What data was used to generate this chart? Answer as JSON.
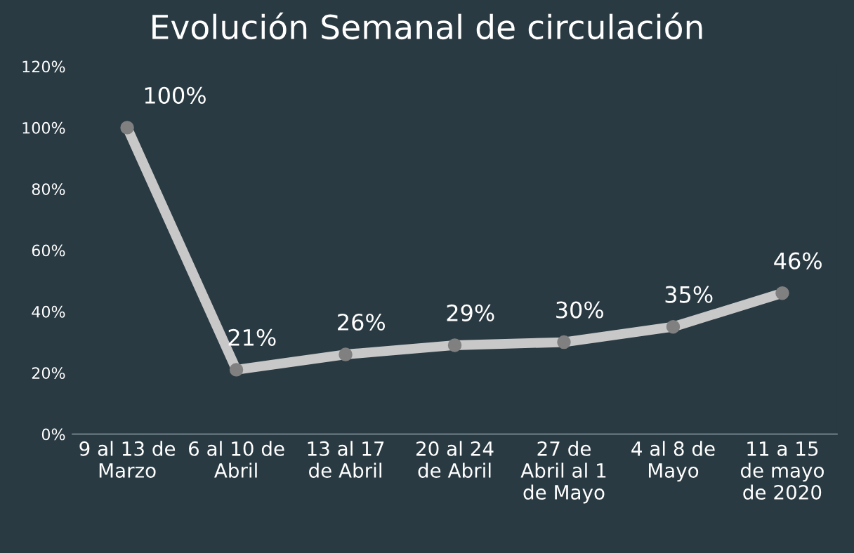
{
  "chart_data": {
    "type": "line",
    "title": "Evolución Semanal de circulación",
    "categories": [
      "9 al 13 de\nMarzo",
      "6 al 10 de\nAbril",
      "13 al 17\nde Abril",
      "20 al 24\nde Abril",
      "27 de\nAbril al 1\nde Mayo",
      "4 al 8 de\nMayo",
      "11 a 15\nde mayo\nde 2020"
    ],
    "series": [
      {
        "color": "#c8c8c8",
        "values": [
          100,
          21,
          26,
          29,
          30,
          35,
          46
        ],
        "value_labels": [
          "100%",
          "21%",
          "26%",
          "29%",
          "30%",
          "35%",
          "46%"
        ]
      }
    ],
    "ylim": [
      0,
      120
    ],
    "yticks": [
      {
        "value": 0,
        "label": "0%"
      },
      {
        "value": 20,
        "label": "20%"
      },
      {
        "value": 40,
        "label": "40%"
      },
      {
        "value": 60,
        "label": "60%"
      },
      {
        "value": 80,
        "label": "80%"
      },
      {
        "value": 100,
        "label": "100%"
      },
      {
        "value": 120,
        "label": "120%"
      }
    ],
    "grid": false,
    "legend": false,
    "marker": "circle",
    "line_style": "solid"
  }
}
